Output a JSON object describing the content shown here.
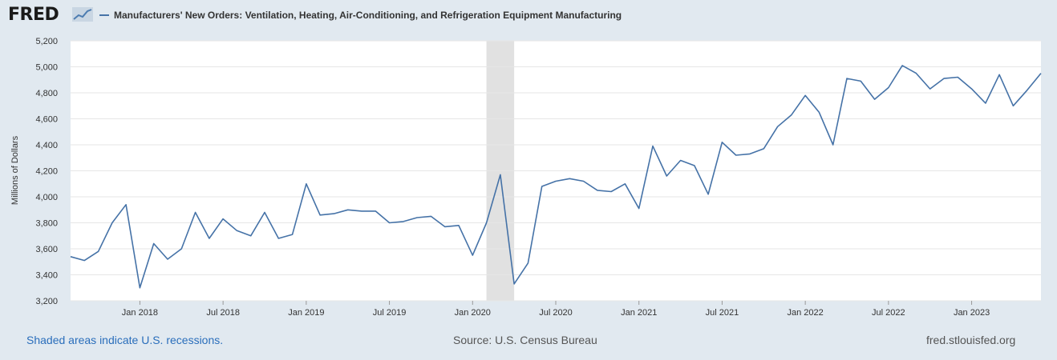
{
  "logo": {
    "text": "FRED",
    "icon": "trend-graph-icon"
  },
  "legend": {
    "label": "Manufacturers' New Orders: Ventilation, Heating, Air-Conditioning, and Refrigeration Equipment Manufacturing",
    "color": "#4572a7"
  },
  "footer": {
    "recession_note": "Shaded areas indicate U.S. recessions.",
    "source": "Source: U.S. Census Bureau",
    "site": "fred.stlouisfed.org"
  },
  "chart_data": {
    "type": "line",
    "ylabel": "Millions of Dollars",
    "ylim": [
      3200,
      5200
    ],
    "yticks": [
      3200,
      3400,
      3600,
      3800,
      4000,
      4200,
      4400,
      4600,
      4800,
      5000,
      5200
    ],
    "ytick_labels": [
      "3,200",
      "3,400",
      "3,600",
      "3,800",
      "4,000",
      "4,200",
      "4,400",
      "4,600",
      "4,800",
      "5,000",
      "5,200"
    ],
    "xlim": [
      "2017-08",
      "2023-06"
    ],
    "xticks": [
      "2018-01",
      "2018-07",
      "2019-01",
      "2019-07",
      "2020-01",
      "2020-07",
      "2021-01",
      "2021-07",
      "2022-01",
      "2022-07",
      "2023-01"
    ],
    "xtick_labels": [
      "Jan 2018",
      "Jul 2018",
      "Jan 2019",
      "Jul 2019",
      "Jan 2020",
      "Jul 2020",
      "Jan 2021",
      "Jul 2021",
      "Jan 2022",
      "Jul 2022",
      "Jan 2023"
    ],
    "grid": true,
    "legend_position": "top",
    "recessions": [
      {
        "start": "2020-02",
        "end": "2020-04"
      }
    ],
    "series": [
      {
        "name": "Manufacturers' New Orders: Ventilation, Heating, Air-Conditioning, and Refrigeration Equipment Manufacturing",
        "color": "#4572a7",
        "x": [
          "2017-08",
          "2017-09",
          "2017-10",
          "2017-11",
          "2017-12",
          "2018-01",
          "2018-02",
          "2018-03",
          "2018-04",
          "2018-05",
          "2018-06",
          "2018-07",
          "2018-08",
          "2018-09",
          "2018-10",
          "2018-11",
          "2018-12",
          "2019-01",
          "2019-02",
          "2019-03",
          "2019-04",
          "2019-05",
          "2019-06",
          "2019-07",
          "2019-08",
          "2019-09",
          "2019-10",
          "2019-11",
          "2019-12",
          "2020-01",
          "2020-02",
          "2020-03",
          "2020-04",
          "2020-05",
          "2020-06",
          "2020-07",
          "2020-08",
          "2020-09",
          "2020-10",
          "2020-11",
          "2020-12",
          "2021-01",
          "2021-02",
          "2021-03",
          "2021-04",
          "2021-05",
          "2021-06",
          "2021-07",
          "2021-08",
          "2021-09",
          "2021-10",
          "2021-11",
          "2021-12",
          "2022-01",
          "2022-02",
          "2022-03",
          "2022-04",
          "2022-05",
          "2022-06",
          "2022-07",
          "2022-08",
          "2022-09",
          "2022-10",
          "2022-11",
          "2022-12",
          "2023-01",
          "2023-02",
          "2023-03",
          "2023-04",
          "2023-05",
          "2023-06"
        ],
        "values": [
          3540,
          3510,
          3580,
          3800,
          3940,
          3300,
          3640,
          3520,
          3600,
          3880,
          3680,
          3830,
          3740,
          3700,
          3880,
          3680,
          3710,
          4100,
          3860,
          3870,
          3900,
          3890,
          3890,
          3800,
          3810,
          3840,
          3850,
          3770,
          3780,
          3550,
          3800,
          4170,
          3330,
          3490,
          4080,
          4120,
          4140,
          4120,
          4050,
          4040,
          4100,
          3910,
          4390,
          4160,
          4280,
          4240,
          4020,
          4420,
          4320,
          4330,
          4370,
          4540,
          4630,
          4780,
          4650,
          4400,
          4910,
          4890,
          4750,
          4840,
          5010,
          4950,
          4830,
          4910,
          4920,
          4830,
          4720,
          4940,
          4700,
          4820,
          4950
        ]
      }
    ]
  }
}
